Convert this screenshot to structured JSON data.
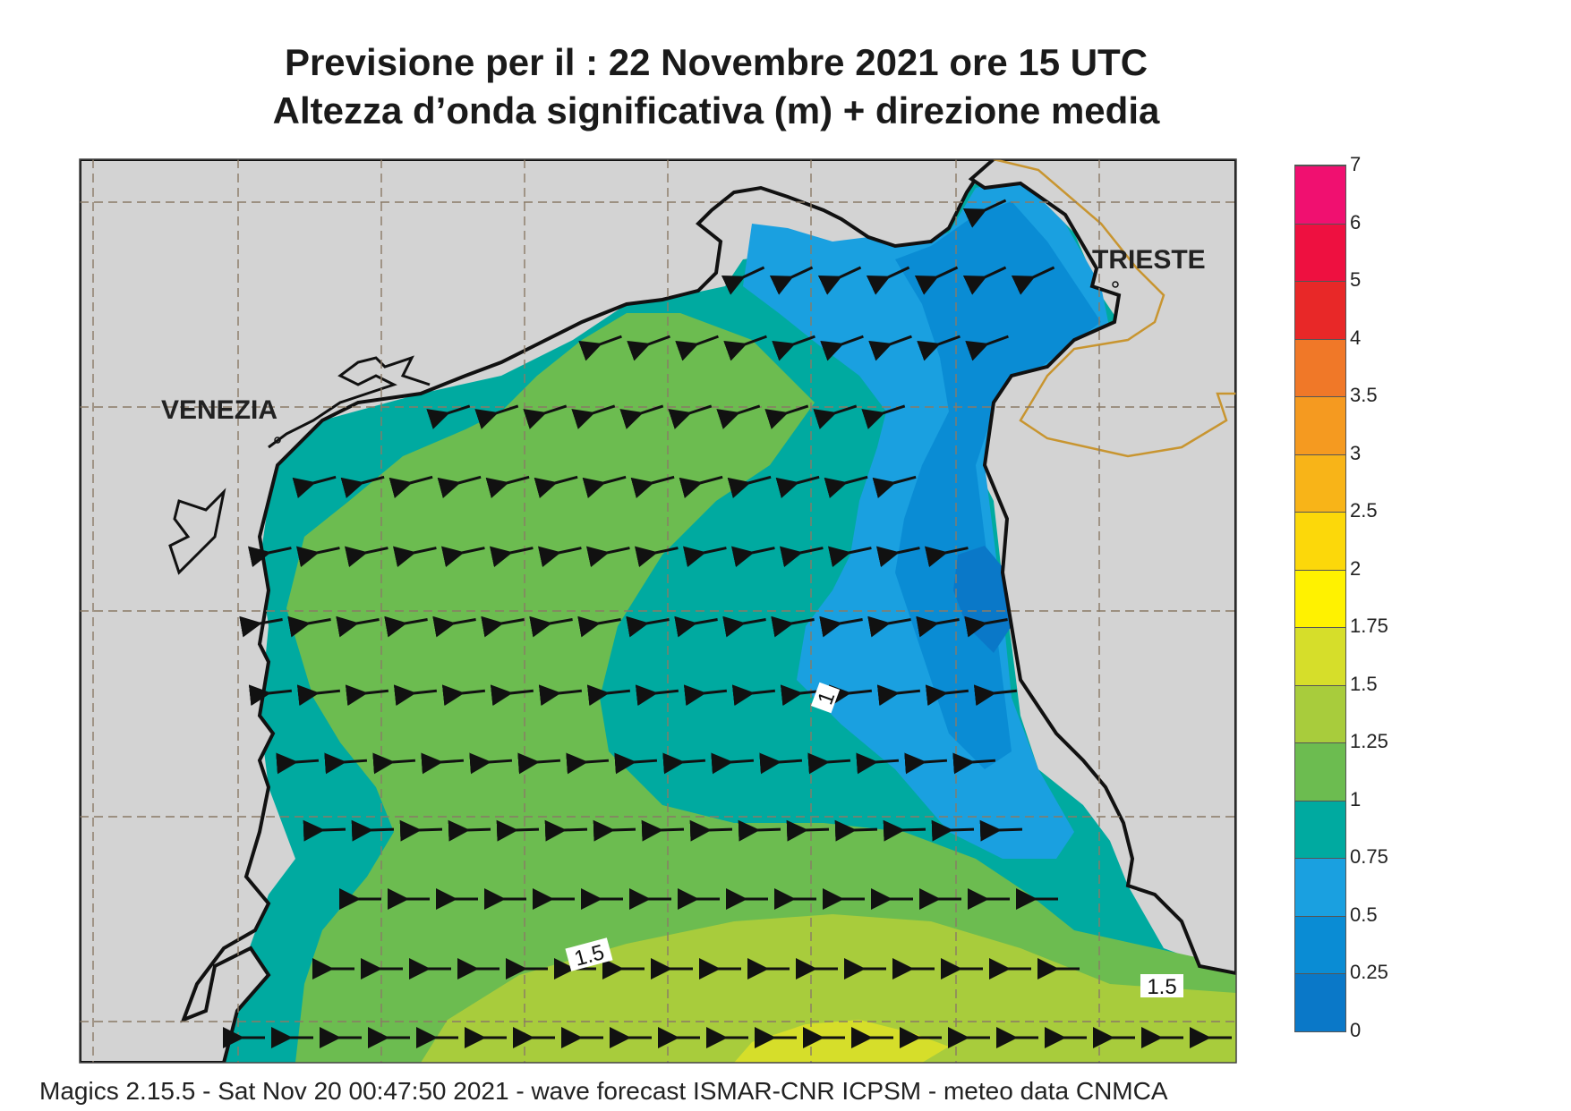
{
  "header": {
    "title_line1": "Previsione per il  :  22 Novembre  2021   ore 15 UTC",
    "title_line2": "Altezza d’onda significativa (m) + direzione media"
  },
  "map": {
    "places": {
      "venezia": "VENEZIA",
      "trieste": "TRIESTE"
    },
    "contour_labels": [
      "1",
      "1.5",
      "1.5"
    ],
    "colors": {
      "land": "#d3d3d3",
      "border": "#c89530",
      "coast": "#111111",
      "gridlines": "#8a7a66"
    }
  },
  "legend": {
    "levels": [
      {
        "label": "7",
        "color": "#f01070"
      },
      {
        "label": "6",
        "color": "#ee1040"
      },
      {
        "label": "5",
        "color": "#e82828"
      },
      {
        "label": "4",
        "color": "#f07828"
      },
      {
        "label": "3.5",
        "color": "#f59a20"
      },
      {
        "label": "3",
        "color": "#f8b418"
      },
      {
        "label": "2.5",
        "color": "#fcd80a"
      },
      {
        "label": "2",
        "color": "#fff200"
      },
      {
        "label": "1.75",
        "color": "#d6de2a"
      },
      {
        "label": "1.5",
        "color": "#a8cc3c"
      },
      {
        "label": "1.25",
        "color": "#6cbc50"
      },
      {
        "label": "1",
        "color": "#00aaa0"
      },
      {
        "label": "0.75",
        "color": "#1aa0e0"
      },
      {
        "label": "0.5",
        "color": "#0a8cd4"
      },
      {
        "label": "0.25",
        "color": "#0a78c8"
      },
      {
        "label": "0",
        "color": "#0060b8"
      }
    ]
  },
  "footer": {
    "credit": "Magics 2.15.5 - Sat Nov 20 00:47:50 2021 - wave forecast  ISMAR-CNR  ICPSM - meteo data   CNMCA"
  }
}
